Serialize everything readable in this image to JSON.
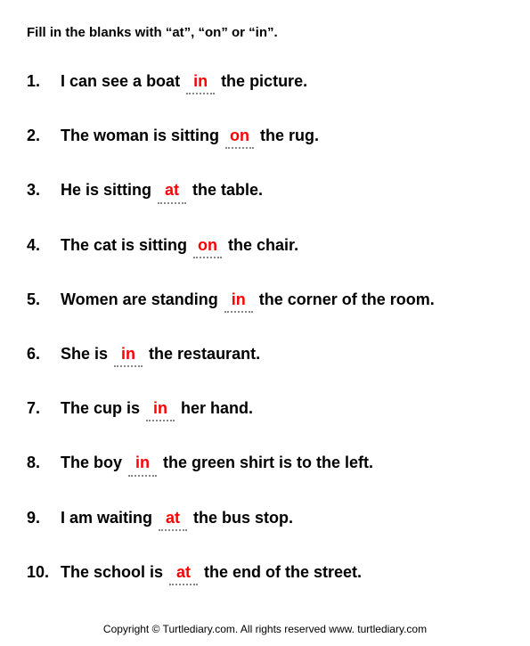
{
  "instruction": "Fill in the blanks with “at”, “on” or  “in”.",
  "answer_color": "#ff0000",
  "text_color": "#000000",
  "underline_color": "#888888",
  "background_color": "#ffffff",
  "font_family": "Arial",
  "questions": [
    {
      "num": "1.",
      "pre": "I can see a boat ",
      "ans": "in",
      "post": " the picture."
    },
    {
      "num": "2.",
      "pre": "The woman is sitting ",
      "ans": "on",
      "post": " the rug."
    },
    {
      "num": "3.",
      "pre": "He is sitting ",
      "ans": "at",
      "post": " the table."
    },
    {
      "num": "4.",
      "pre": "The cat is sitting ",
      "ans": "on",
      "post": " the chair."
    },
    {
      "num": "5.",
      "pre": "Women are standing ",
      "ans": "in",
      "post": " the corner of the room."
    },
    {
      "num": "6.",
      "pre": "She is ",
      "ans": "in",
      "post": "  the restaurant."
    },
    {
      "num": "7.",
      "pre": "The cup is ",
      "ans": "in",
      "post": "  her hand."
    },
    {
      "num": "8.",
      "pre": "The boy ",
      "ans": "in",
      "post": "  the green shirt is to the left."
    },
    {
      "num": "9.",
      "pre": "I am waiting ",
      "ans": "at",
      "post": " the bus stop."
    },
    {
      "num": "10.",
      "pre": "The school is ",
      "ans": "at",
      "post": " the end of the street."
    }
  ],
  "footer": "Copyright © Turtlediary.com. All rights reserved  www. turtlediary.com"
}
